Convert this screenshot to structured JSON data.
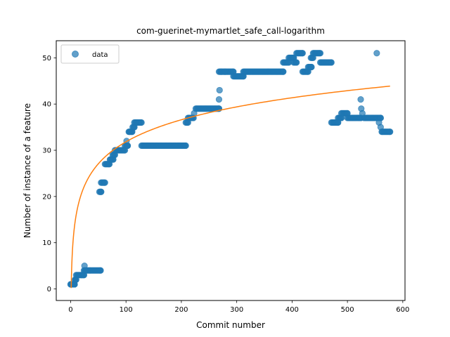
{
  "chart_data": {
    "type": "scatter",
    "title": "com-guerinet-mymartlet_safe_call-logarithm",
    "xlabel": "Commit number",
    "ylabel": "Number of instance of a feature",
    "xlim": [
      -26,
      604
    ],
    "ylim": [
      -2.5,
      53.7
    ],
    "xticks": [
      0,
      100,
      200,
      300,
      400,
      500,
      600
    ],
    "yticks": [
      0,
      10,
      20,
      30,
      40,
      50
    ],
    "legend": {
      "position": "top-left",
      "entries": [
        "data"
      ]
    },
    "colors": {
      "data": "#1f77b4",
      "fit": "#ff7f0e"
    },
    "series": [
      {
        "name": "data",
        "kind": "scatter",
        "segments": [
          {
            "x0": 0,
            "x1": 3,
            "y": 1
          },
          {
            "x0": 4,
            "x1": 7,
            "y": 1
          },
          {
            "x0": 8,
            "x1": 10,
            "y": 2
          },
          {
            "x0": 10,
            "x1": 20,
            "y": 3
          },
          {
            "x0": 21,
            "x1": 24,
            "y": 3
          },
          {
            "x0": 24,
            "x1": 54,
            "y": 4
          },
          {
            "x0": 52,
            "x1": 55,
            "y": 21
          },
          {
            "x0": 55,
            "x1": 62,
            "y": 23
          },
          {
            "x0": 62,
            "x1": 70,
            "y": 27
          },
          {
            "x0": 72,
            "x1": 77,
            "y": 28
          },
          {
            "x0": 76,
            "x1": 80,
            "y": 29
          },
          {
            "x0": 82,
            "x1": 98,
            "y": 30
          },
          {
            "x0": 98,
            "x1": 103,
            "y": 31
          },
          {
            "x0": 105,
            "x1": 111,
            "y": 34
          },
          {
            "x0": 112,
            "x1": 115,
            "y": 35
          },
          {
            "x0": 115,
            "x1": 128,
            "y": 36
          },
          {
            "x0": 128,
            "x1": 208,
            "y": 31
          },
          {
            "x0": 208,
            "x1": 212,
            "y": 36
          },
          {
            "x0": 212,
            "x1": 222,
            "y": 37
          },
          {
            "x0": 226,
            "x1": 268,
            "y": 39
          },
          {
            "x0": 268,
            "x1": 294,
            "y": 47
          },
          {
            "x0": 294,
            "x1": 312,
            "y": 46
          },
          {
            "x0": 312,
            "x1": 384,
            "y": 47
          },
          {
            "x0": 384,
            "x1": 394,
            "y": 49
          },
          {
            "x0": 394,
            "x1": 403,
            "y": 50
          },
          {
            "x0": 403,
            "x1": 408,
            "y": 49
          },
          {
            "x0": 408,
            "x1": 419,
            "y": 51
          },
          {
            "x0": 419,
            "x1": 429,
            "y": 47
          },
          {
            "x0": 429,
            "x1": 435,
            "y": 48
          },
          {
            "x0": 434,
            "x1": 438,
            "y": 50
          },
          {
            "x0": 438,
            "x1": 451,
            "y": 51
          },
          {
            "x0": 451,
            "x1": 471,
            "y": 49
          },
          {
            "x0": 471,
            "x1": 483,
            "y": 36
          },
          {
            "x0": 483,
            "x1": 489,
            "y": 37
          },
          {
            "x0": 489,
            "x1": 500,
            "y": 38
          },
          {
            "x0": 500,
            "x1": 524,
            "y": 37
          },
          {
            "x0": 530,
            "x1": 560,
            "y": 37
          },
          {
            "x0": 563,
            "x1": 577,
            "y": 34
          }
        ],
        "points": [
          [
            0,
            1
          ],
          [
            7,
            1
          ],
          [
            8,
            2
          ],
          [
            25,
            5
          ],
          [
            26,
            4
          ],
          [
            71,
            28
          ],
          [
            80,
            30
          ],
          [
            101,
            32
          ],
          [
            103,
            31
          ],
          [
            106,
            34
          ],
          [
            218,
            37
          ],
          [
            223,
            38
          ],
          [
            268,
            41
          ],
          [
            269,
            43
          ],
          [
            272,
            47
          ],
          [
            279,
            47
          ],
          [
            521,
            37
          ],
          [
            524,
            41
          ],
          [
            525,
            39
          ],
          [
            527,
            38
          ],
          [
            553,
            51
          ],
          [
            557,
            36
          ],
          [
            560,
            35
          ],
          [
            562,
            34
          ]
        ]
      },
      {
        "name": "fit",
        "kind": "line",
        "x_range": [
          1,
          577
        ],
        "model": "a + b*ln(x)",
        "a": 0.2,
        "b": 6.87
      }
    ]
  }
}
